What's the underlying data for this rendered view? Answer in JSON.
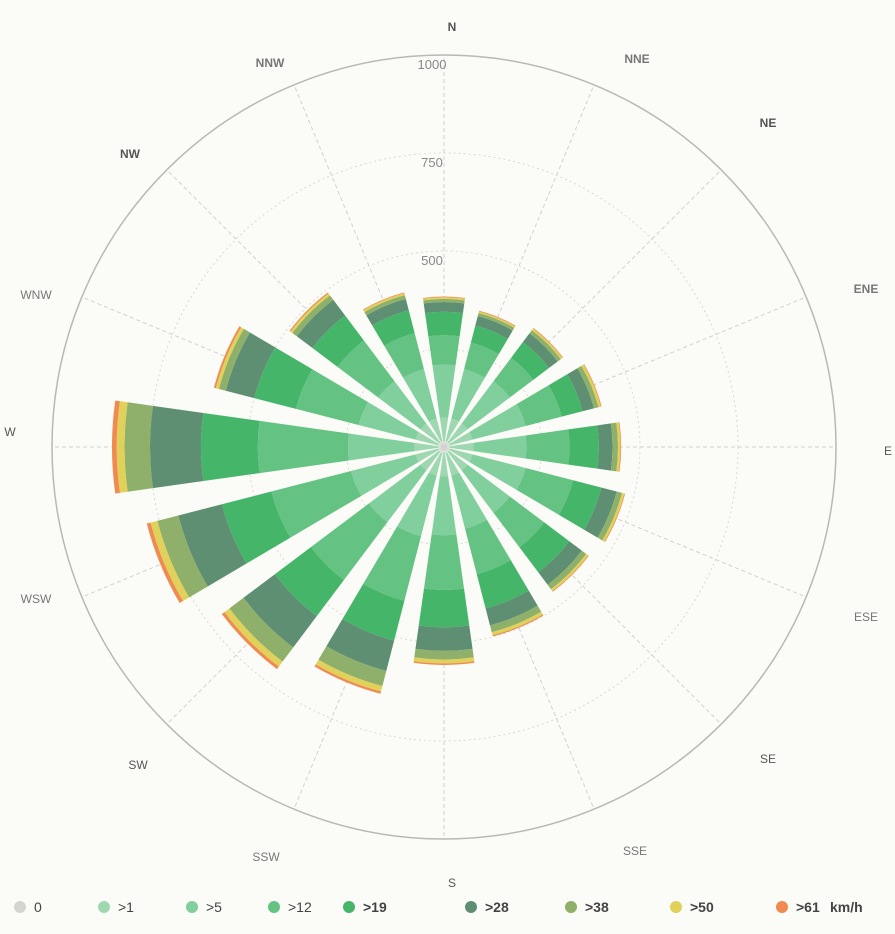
{
  "chart_data": {
    "type": "polar-stacked-bar",
    "directions": [
      "N",
      "NNE",
      "NE",
      "ENE",
      "E",
      "ESE",
      "SE",
      "SSE",
      "S",
      "SSW",
      "SW",
      "WSW",
      "W",
      "WNW",
      "NW",
      "NNW"
    ],
    "radial_ticks": [
      "500",
      "750",
      "1000"
    ],
    "rlim": [
      0,
      1000
    ],
    "legend_unit": "km/h",
    "legend_placement": "bottom",
    "series": [
      {
        "name": "0",
        "color": "#d4d4d0",
        "values": [
          15,
          15,
          15,
          15,
          15,
          15,
          15,
          15,
          15,
          15,
          15,
          15,
          15,
          15,
          15,
          15
        ]
      },
      {
        "name": ">1",
        "color": "#9fd8b0",
        "values": [
          60,
          60,
          60,
          60,
          60,
          60,
          60,
          60,
          60,
          60,
          60,
          60,
          60,
          60,
          60,
          60
        ]
      },
      {
        "name": ">5",
        "color": "#80cf9c",
        "values": [
          135,
          130,
          135,
          140,
          135,
          140,
          135,
          140,
          150,
          160,
          165,
          170,
          170,
          150,
          135,
          130
        ]
      },
      {
        "name": ">12",
        "color": "#64c283",
        "values": [
          75,
          70,
          75,
          95,
          110,
          125,
          110,
          120,
          140,
          170,
          185,
          210,
          230,
          165,
          130,
          95
        ]
      },
      {
        "name": ">19",
        "color": "#45b56a",
        "values": [
          60,
          45,
          50,
          55,
          75,
          75,
          80,
          90,
          95,
          105,
          115,
          130,
          145,
          110,
          80,
          60
        ]
      },
      {
        "name": ">28",
        "color": "#5e8f73",
        "values": [
          25,
          25,
          28,
          30,
          35,
          40,
          40,
          45,
          60,
          80,
          100,
          115,
          130,
          75,
          50,
          30
        ]
      },
      {
        "name": ">38",
        "color": "#8fb06a",
        "values": [
          8,
          8,
          10,
          12,
          14,
          14,
          14,
          18,
          22,
          40,
          45,
          55,
          65,
          18,
          14,
          10
        ]
      },
      {
        "name": ">50",
        "color": "#dfd15a",
        "values": [
          4,
          4,
          5,
          6,
          6,
          6,
          6,
          8,
          10,
          14,
          16,
          18,
          20,
          8,
          6,
          5
        ]
      },
      {
        "name": ">61",
        "color": "#f08a50",
        "values": [
          2,
          2,
          2,
          2,
          2,
          2,
          2,
          3,
          4,
          6,
          8,
          10,
          12,
          5,
          3,
          2
        ]
      }
    ]
  }
}
